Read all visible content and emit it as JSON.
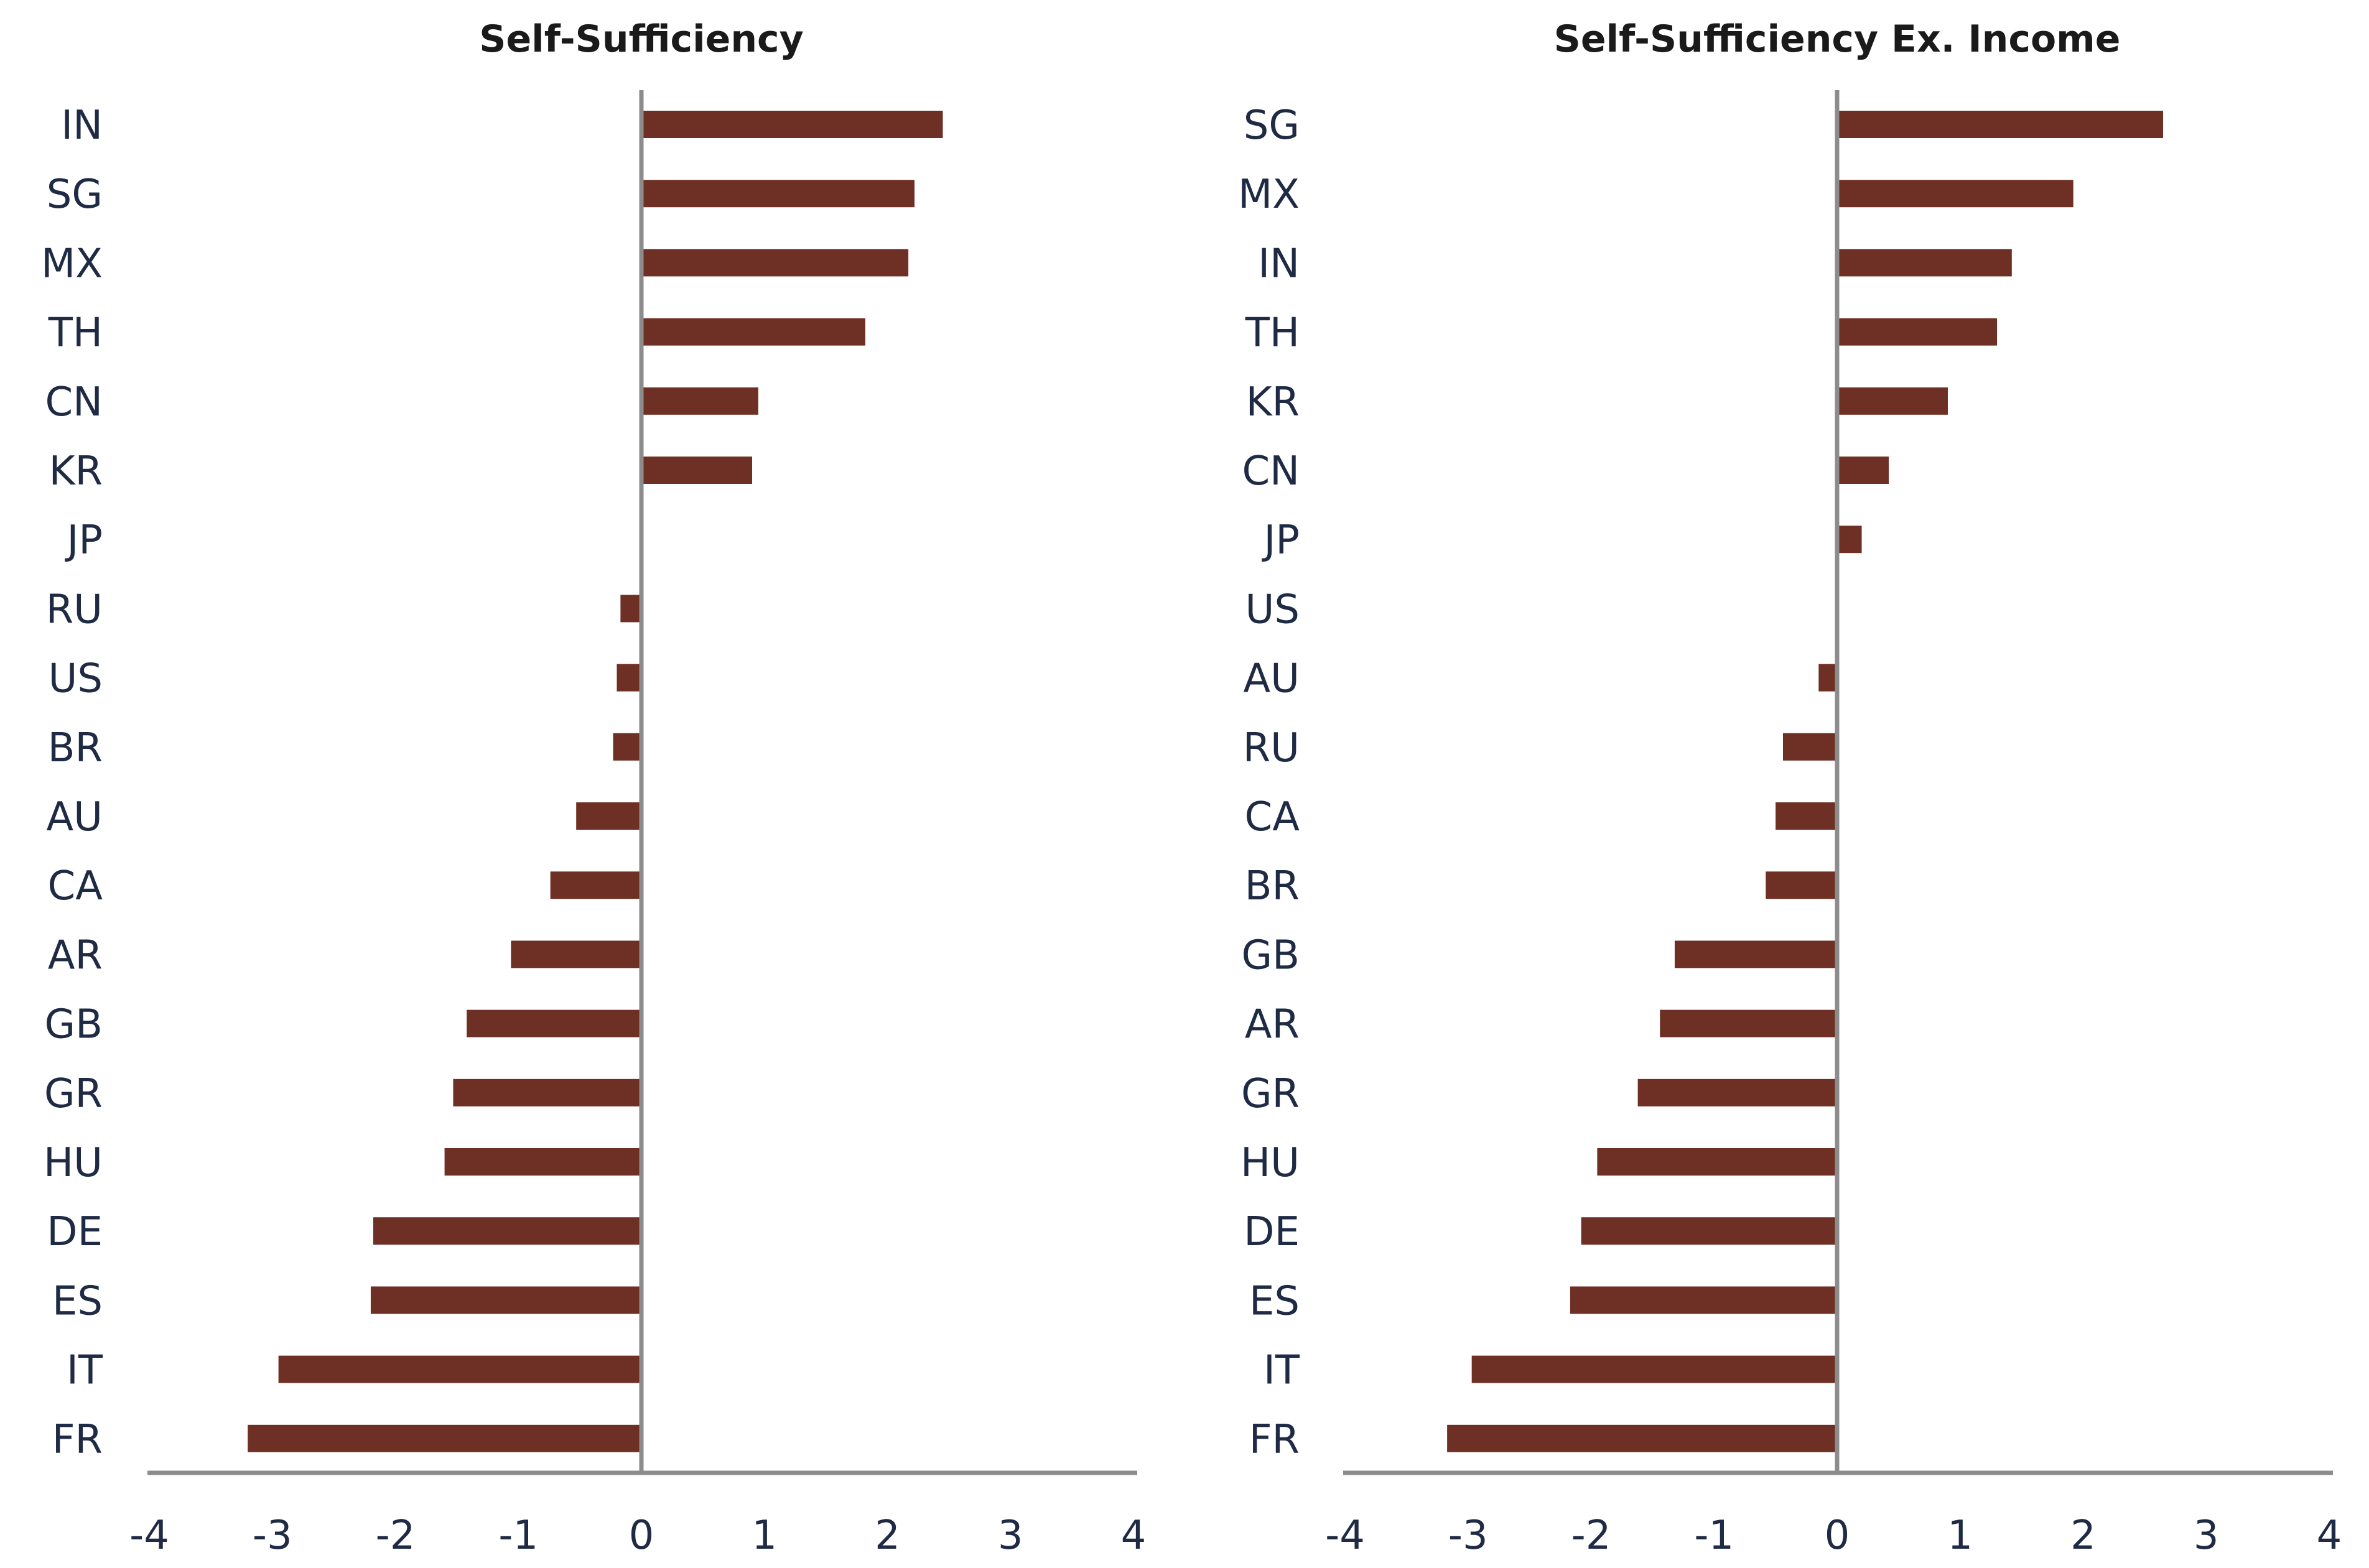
{
  "colors": {
    "bar": "#6e2f24",
    "axis": "#8c8c8c",
    "text": "#1f2a44"
  },
  "chart_data": [
    {
      "type": "bar",
      "orientation": "horizontal",
      "title": "Self-Sufficiency",
      "categories": [
        "IN",
        "SG",
        "MX",
        "TH",
        "CN",
        "KR",
        "JP",
        "RU",
        "US",
        "BR",
        "AU",
        "CA",
        "AR",
        "GB",
        "GR",
        "HU",
        "DE",
        "ES",
        "IT",
        "FR"
      ],
      "values": [
        2.45,
        2.22,
        2.17,
        1.82,
        0.95,
        0.9,
        0.0,
        -0.17,
        -0.2,
        -0.23,
        -0.53,
        -0.74,
        -1.06,
        -1.42,
        -1.53,
        -1.6,
        -2.18,
        -2.2,
        -2.95,
        -3.2
      ],
      "xlim": [
        -4,
        4
      ],
      "xticks": [
        "-4",
        "-3",
        "-2",
        "-1",
        "0",
        "1",
        "2",
        "3",
        "4"
      ],
      "grid": false,
      "legend": "none"
    },
    {
      "type": "bar",
      "orientation": "horizontal",
      "title": "Self-Sufficiency Ex. Income",
      "categories": [
        "SG",
        "MX",
        "IN",
        "TH",
        "KR",
        "CN",
        "JP",
        "US",
        "AU",
        "RU",
        "CA",
        "BR",
        "GB",
        "AR",
        "GR",
        "HU",
        "DE",
        "ES",
        "IT",
        "FR"
      ],
      "values": [
        2.65,
        1.92,
        1.42,
        1.3,
        0.9,
        0.42,
        0.2,
        0.0,
        -0.15,
        -0.44,
        -0.5,
        -0.58,
        -1.32,
        -1.44,
        -1.62,
        -1.95,
        -2.08,
        -2.17,
        -2.97,
        -3.17
      ],
      "xlim": [
        -4,
        4
      ],
      "xticks": [
        "-4",
        "-3",
        "-2",
        "-1",
        "0",
        "1",
        "2",
        "3",
        "4"
      ],
      "grid": false,
      "legend": "none"
    }
  ]
}
